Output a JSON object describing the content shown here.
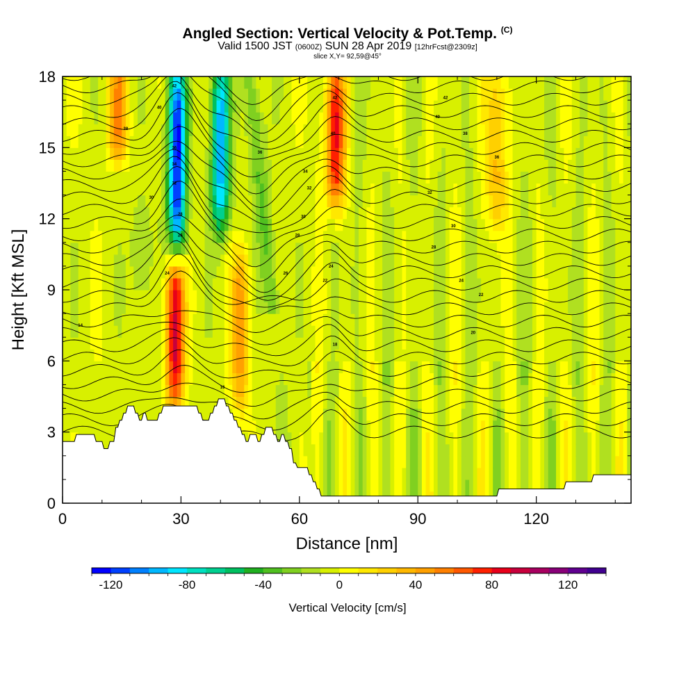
{
  "title": {
    "main": "Angled Section: Vertical Velocity & Pot.Temp.",
    "main_unit": "(C)",
    "valid_prefix": "Valid 1500 JST",
    "valid_utc": "(0600Z)",
    "valid_date": "SUN 28 Apr 2019",
    "forecast": "[12hrFcst@2309z]",
    "slice": "slice X,Y= 92,59@45°"
  },
  "chart_data": {
    "type": "heatmap",
    "xlabel": "Distance [nm]",
    "ylabel": "Height [Kft MSL]",
    "xlim": [
      0,
      144
    ],
    "ylim": [
      0,
      18
    ],
    "x_ticks": [
      0,
      30,
      60,
      90,
      120
    ],
    "y_ticks": [
      0,
      3,
      6,
      9,
      12,
      15,
      18
    ],
    "colorbar": {
      "label": "Vertical Velocity [cm/s]",
      "min": -130,
      "max": 140,
      "step": 10,
      "tick_values": [
        -120,
        -80,
        -40,
        0,
        40,
        80,
        120
      ],
      "colors": [
        "#0000ff",
        "#0040ff",
        "#0080ff",
        "#00b8ff",
        "#00e6ff",
        "#00e0c0",
        "#00d090",
        "#00c060",
        "#20b020",
        "#50c020",
        "#80d020",
        "#b0e020",
        "#d8f000",
        "#ffff00",
        "#ffe800",
        "#ffd000",
        "#ffb800",
        "#ffa000",
        "#ff8000",
        "#ff5800",
        "#ff2000",
        "#e8001a",
        "#c8003c",
        "#a80060",
        "#880078",
        "#600090",
        "#400090"
      ]
    },
    "updrafts": [
      {
        "x": 28.5,
        "peak_cm_s": 95,
        "height_range": [
          4.5,
          10
        ]
      },
      {
        "x": 45,
        "peak_cm_s": 50,
        "height_range": [
          4.5,
          10
        ]
      },
      {
        "x": 69,
        "peak_cm_s": 90,
        "height_range": [
          13,
          18
        ]
      },
      {
        "x": 14,
        "peak_cm_s": 55,
        "height_range": [
          15,
          18
        ]
      },
      {
        "x": 110,
        "peak_cm_s": 45,
        "height_range": [
          12,
          18
        ]
      }
    ],
    "downdrafts": [
      {
        "x": 29,
        "peak_cm_s": -120,
        "height_range": [
          11,
          18
        ]
      },
      {
        "x": 40,
        "peak_cm_s": -95,
        "height_range": [
          12,
          18
        ]
      }
    ],
    "terrain_kft": [
      [
        0,
        2.6
      ],
      [
        3,
        2.6
      ],
      [
        3.5,
        2.9
      ],
      [
        8,
        2.9
      ],
      [
        8.5,
        2.6
      ],
      [
        10,
        2.6
      ],
      [
        10.5,
        2.3
      ],
      [
        11.5,
        2.3
      ],
      [
        12,
        2.6
      ],
      [
        13,
        2.6
      ],
      [
        13.5,
        3.2
      ],
      [
        14,
        3.2
      ],
      [
        14.5,
        3.5
      ],
      [
        15,
        3.5
      ],
      [
        15.5,
        3.8
      ],
      [
        16,
        3.8
      ],
      [
        16.5,
        4.1
      ],
      [
        18,
        4.1
      ],
      [
        18.5,
        3.8
      ],
      [
        19,
        3.8
      ],
      [
        19.5,
        3.5
      ],
      [
        20,
        3.5
      ],
      [
        20.5,
        3.8
      ],
      [
        21,
        3.8
      ],
      [
        21.5,
        3.5
      ],
      [
        24,
        3.5
      ],
      [
        24.5,
        3.8
      ],
      [
        25,
        3.8
      ],
      [
        25.5,
        4.1
      ],
      [
        34,
        4.1
      ],
      [
        34.5,
        3.8
      ],
      [
        35,
        3.8
      ],
      [
        35.5,
        3.5
      ],
      [
        37,
        3.5
      ],
      [
        37.5,
        3.8
      ],
      [
        38,
        3.8
      ],
      [
        38.5,
        4.1
      ],
      [
        39,
        4.1
      ],
      [
        39.5,
        4.4
      ],
      [
        41,
        4.4
      ],
      [
        41.5,
        4.1
      ],
      [
        42,
        4.1
      ],
      [
        42.5,
        3.8
      ],
      [
        43,
        3.8
      ],
      [
        43.5,
        3.5
      ],
      [
        44,
        3.5
      ],
      [
        44.5,
        3.2
      ],
      [
        45,
        3.2
      ],
      [
        45.5,
        2.9
      ],
      [
        46,
        2.9
      ],
      [
        46.5,
        2.6
      ],
      [
        47,
        2.6
      ],
      [
        47.5,
        2.9
      ],
      [
        49,
        2.9
      ],
      [
        49.5,
        2.6
      ],
      [
        50,
        2.6
      ],
      [
        50.5,
        2.9
      ],
      [
        51,
        2.9
      ],
      [
        51.5,
        3.2
      ],
      [
        53,
        3.2
      ],
      [
        53.5,
        2.9
      ],
      [
        54,
        2.9
      ],
      [
        54.5,
        2.6
      ],
      [
        55,
        2.6
      ],
      [
        55.5,
        2.9
      ],
      [
        56,
        2.9
      ],
      [
        56.5,
        2.6
      ],
      [
        57,
        2.6
      ],
      [
        57.5,
        2.3
      ],
      [
        58,
        2.3
      ],
      [
        58.5,
        1.7
      ],
      [
        59,
        1.7
      ],
      [
        59.5,
        1.5
      ],
      [
        62,
        1.5
      ],
      [
        62.5,
        1.2
      ],
      [
        63,
        1.2
      ],
      [
        63.5,
        0.9
      ],
      [
        64,
        0.9
      ],
      [
        64.5,
        0.6
      ],
      [
        65,
        0.6
      ],
      [
        65.5,
        0.3
      ],
      [
        110,
        0.3
      ],
      [
        110.5,
        0.6
      ],
      [
        127,
        0.6
      ],
      [
        127.5,
        0.9
      ],
      [
        134,
        0.9
      ],
      [
        134.5,
        1.2
      ],
      [
        144,
        1.2
      ]
    ],
    "theta_contours": {
      "units": "C",
      "labels": [
        {
          "x": 4.5,
          "y": 7.5,
          "text": "14"
        },
        {
          "x": 28.3,
          "y": 17.6,
          "text": "42"
        },
        {
          "x": 24.5,
          "y": 16.7,
          "text": "40"
        },
        {
          "x": 16,
          "y": 15.8,
          "text": "38"
        },
        {
          "x": 28.3,
          "y": 15,
          "text": "36"
        },
        {
          "x": 28.3,
          "y": 14.3,
          "text": "34"
        },
        {
          "x": 28.3,
          "y": 13.5,
          "text": "32"
        },
        {
          "x": 22.5,
          "y": 12.9,
          "text": "30"
        },
        {
          "x": 29.8,
          "y": 12.2,
          "text": "28"
        },
        {
          "x": 29.8,
          "y": 11.3,
          "text": "26"
        },
        {
          "x": 26.5,
          "y": 9.7,
          "text": "24"
        },
        {
          "x": 50,
          "y": 14.8,
          "text": "36"
        },
        {
          "x": 61.5,
          "y": 14,
          "text": "34"
        },
        {
          "x": 62.5,
          "y": 13.3,
          "text": "32"
        },
        {
          "x": 61,
          "y": 12.1,
          "text": "30"
        },
        {
          "x": 59.5,
          "y": 11.3,
          "text": "28"
        },
        {
          "x": 56.5,
          "y": 9.7,
          "text": "26"
        },
        {
          "x": 69,
          "y": 17.1,
          "text": "42"
        },
        {
          "x": 68.5,
          "y": 15.6,
          "text": "40"
        },
        {
          "x": 68,
          "y": 10,
          "text": "24"
        },
        {
          "x": 66.5,
          "y": 9.4,
          "text": "22"
        },
        {
          "x": 69,
          "y": 6.7,
          "text": "18"
        },
        {
          "x": 40.5,
          "y": 4.9,
          "text": "16"
        },
        {
          "x": 97,
          "y": 17.1,
          "text": "42"
        },
        {
          "x": 95,
          "y": 16.3,
          "text": "40"
        },
        {
          "x": 102,
          "y": 15.6,
          "text": "38"
        },
        {
          "x": 110,
          "y": 14.6,
          "text": "36"
        },
        {
          "x": 93,
          "y": 13.1,
          "text": "32"
        },
        {
          "x": 99,
          "y": 11.7,
          "text": "30"
        },
        {
          "x": 94,
          "y": 10.8,
          "text": "28"
        },
        {
          "x": 101,
          "y": 9.4,
          "text": "24"
        },
        {
          "x": 106,
          "y": 8.8,
          "text": "22"
        },
        {
          "x": 104,
          "y": 7.2,
          "text": "20"
        }
      ]
    }
  }
}
